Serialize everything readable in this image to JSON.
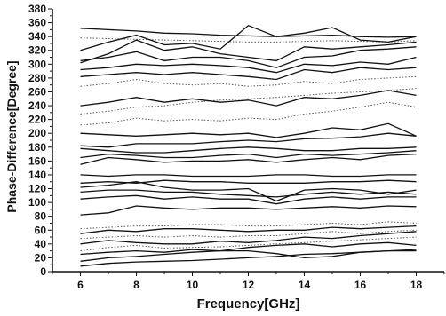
{
  "chart_data": {
    "type": "line",
    "title": "",
    "xlabel": "Frequency[GHz]",
    "ylabel": "Phase-Difference[Degree]",
    "xlim": [
      5,
      19
    ],
    "ylim": [
      0,
      380
    ],
    "x_ticks": [
      6,
      8,
      10,
      12,
      14,
      16,
      18
    ],
    "y_ticks": [
      0,
      20,
      40,
      60,
      80,
      100,
      120,
      140,
      160,
      180,
      200,
      220,
      240,
      260,
      280,
      300,
      320,
      340,
      360,
      380
    ],
    "grid": false,
    "legend": "none",
    "x": [
      6,
      7,
      8,
      9,
      10,
      11,
      12,
      13,
      14,
      15,
      16,
      17,
      18
    ],
    "series": [
      {
        "style": "solid",
        "values": [
          352,
          350,
          348,
          345,
          344,
          342,
          341,
          340,
          341,
          342,
          340,
          339,
          340
        ]
      },
      {
        "style": "dotted",
        "values": [
          338,
          337,
          336,
          335,
          334,
          333,
          332,
          332,
          333,
          334,
          333,
          332,
          334
        ]
      },
      {
        "style": "solid",
        "values": [
          320,
          332,
          342,
          328,
          330,
          322,
          356,
          340,
          345,
          353,
          335,
          332,
          340
        ]
      },
      {
        "style": "solid",
        "values": [
          302,
          315,
          335,
          320,
          325,
          315,
          310,
          305,
          325,
          322,
          325,
          328,
          332
        ]
      },
      {
        "style": "solid",
        "values": [
          305,
          310,
          318,
          305,
          310,
          310,
          305,
          295,
          310,
          312,
          320,
          322,
          325
        ]
      },
      {
        "style": "solid",
        "values": [
          292,
          295,
          300,
          298,
          300,
          298,
          295,
          288,
          300,
          298,
          303,
          300,
          310
        ]
      },
      {
        "style": "solid",
        "values": [
          282,
          285,
          288,
          285,
          288,
          285,
          282,
          278,
          292,
          288,
          295,
          292,
          295
        ]
      },
      {
        "style": "dotted",
        "values": [
          268,
          272,
          278,
          272,
          270,
          272,
          268,
          270,
          275,
          272,
          278,
          280,
          282
        ]
      },
      {
        "style": "dotted",
        "values": [
          228,
          232,
          238,
          240,
          245,
          248,
          250,
          252,
          255,
          258,
          260,
          262,
          265
        ]
      },
      {
        "style": "solid",
        "values": [
          240,
          245,
          252,
          245,
          250,
          245,
          248,
          240,
          252,
          250,
          255,
          262,
          255
        ]
      },
      {
        "style": "dotted",
        "values": [
          212,
          215,
          222,
          218,
          220,
          218,
          222,
          220,
          228,
          232,
          238,
          245,
          238
        ]
      },
      {
        "style": "solid",
        "values": [
          200,
          198,
          196,
          198,
          200,
          198,
          200,
          194,
          200,
          208,
          205,
          214,
          196
        ]
      },
      {
        "style": "solid",
        "values": [
          182,
          180,
          185,
          185,
          185,
          188,
          190,
          188,
          192,
          193,
          195,
          200,
          196
        ]
      },
      {
        "style": "solid",
        "values": [
          178,
          175,
          172,
          172,
          175,
          178,
          180,
          178,
          175,
          175,
          178,
          178,
          180
        ]
      },
      {
        "style": "solid",
        "values": [
          165,
          170,
          168,
          165,
          165,
          168,
          170,
          165,
          170,
          168,
          170,
          172,
          175
        ]
      },
      {
        "style": "solid",
        "values": [
          155,
          165,
          162,
          158,
          160,
          160,
          162,
          158,
          162,
          165,
          162,
          168,
          170
        ]
      },
      {
        "style": "solid",
        "values": [
          140,
          138,
          140,
          140,
          138,
          138,
          138,
          140,
          140,
          138,
          138,
          140,
          140
        ]
      },
      {
        "style": "solid",
        "values": [
          128,
          130,
          128,
          132,
          130,
          130,
          128,
          128,
          128,
          130,
          130,
          132,
          130
        ]
      },
      {
        "style": "solid",
        "values": [
          122,
          125,
          130,
          122,
          118,
          118,
          120,
          102,
          118,
          120,
          118,
          112,
          118
        ]
      },
      {
        "style": "solid",
        "values": [
          115,
          118,
          118,
          115,
          115,
          112,
          110,
          108,
          112,
          115,
          112,
          115,
          112
        ]
      },
      {
        "style": "solid",
        "values": [
          105,
          108,
          110,
          105,
          108,
          105,
          105,
          98,
          105,
          108,
          105,
          108,
          108
        ]
      },
      {
        "style": "solid",
        "values": [
          82,
          85,
          95,
          92,
          90,
          92,
          92,
          90,
          92,
          94,
          92,
          95,
          94
        ]
      },
      {
        "style": "dotted",
        "values": [
          62,
          64,
          66,
          66,
          68,
          68,
          66,
          66,
          68,
          70,
          68,
          72,
          70
        ]
      },
      {
        "style": "solid",
        "values": [
          55,
          60,
          58,
          62,
          62,
          60,
          58,
          60,
          60,
          64,
          62,
          64,
          66
        ]
      },
      {
        "style": "dotted",
        "values": [
          48,
          50,
          52,
          50,
          52,
          50,
          52,
          52,
          55,
          58,
          55,
          58,
          60
        ]
      },
      {
        "style": "solid",
        "values": [
          40,
          45,
          42,
          40,
          40,
          44,
          42,
          45,
          50,
          48,
          52,
          55,
          58
        ]
      },
      {
        "style": "dotted",
        "values": [
          30,
          35,
          38,
          34,
          35,
          36,
          38,
          40,
          42,
          44,
          46,
          48,
          50
        ]
      },
      {
        "style": "solid",
        "values": [
          25,
          28,
          30,
          28,
          32,
          30,
          35,
          38,
          40,
          36,
          40,
          42,
          38
        ]
      },
      {
        "style": "solid",
        "values": [
          15,
          20,
          22,
          25,
          28,
          30,
          30,
          26,
          20,
          22,
          28,
          30,
          32
        ]
      },
      {
        "style": "solid",
        "values": [
          8,
          12,
          14,
          15,
          16,
          18,
          20,
          22,
          25,
          26,
          28,
          30,
          30
        ]
      }
    ]
  }
}
